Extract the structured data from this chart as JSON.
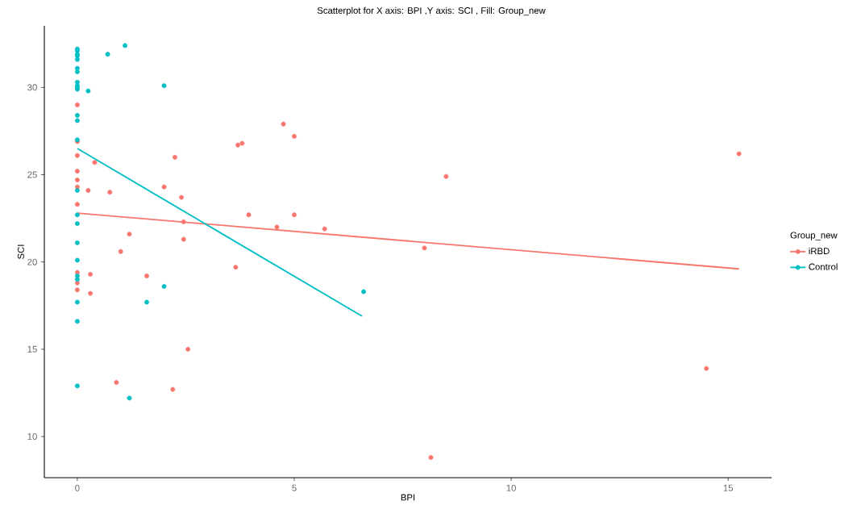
{
  "chart_data": {
    "type": "scatter",
    "title": "Scatterplot for X axis: BPI ,Y axis: SCI , Fill: Group_new",
    "xlabel": "BPI",
    "ylabel": "SCI",
    "legend_title": "Group_new",
    "legend": "right",
    "marker": "circle",
    "xlim": [
      -0.76,
      16.0
    ],
    "ylim": [
      7.64,
      33.53
    ],
    "xticks": [
      0,
      5,
      10,
      15
    ],
    "yticks": [
      10,
      15,
      20,
      25,
      30
    ],
    "series": [
      {
        "name": "iRBD",
        "color": "#f8766d",
        "x": [
          0,
          0,
          0,
          0.4,
          0,
          0,
          0,
          0.25,
          0.75,
          0,
          2.25,
          2.0,
          2.4,
          1.2,
          2.45,
          2.45,
          1.0,
          0,
          0.3,
          0,
          0,
          0.3,
          1.6,
          2.55,
          0.9,
          2.2,
          4.75,
          5.0,
          3.7,
          3.8,
          3.95,
          5.0,
          4.6,
          5.7,
          3.65,
          8.5,
          8.0,
          8.15,
          15.25,
          14.5
        ],
        "values": [
          29.0,
          26.9,
          26.1,
          25.7,
          25.2,
          24.7,
          24.3,
          24.1,
          24.0,
          23.3,
          26.0,
          24.3,
          23.7,
          21.6,
          22.3,
          21.3,
          20.6,
          19.4,
          19.3,
          18.8,
          18.4,
          18.2,
          19.2,
          15.0,
          13.1,
          12.7,
          27.9,
          27.2,
          26.7,
          26.8,
          22.7,
          22.7,
          22.0,
          21.9,
          19.7,
          24.9,
          20.8,
          8.8,
          26.2,
          13.9
        ]
      },
      {
        "name": "Control",
        "color": "#00bfc4",
        "x": [
          0,
          0,
          0,
          0,
          0,
          0,
          0,
          0,
          0,
          0,
          0,
          0,
          0,
          0,
          0,
          0,
          0,
          0,
          0,
          0,
          0,
          0,
          0,
          0,
          0.25,
          0.7,
          1.1,
          2.0,
          2.0,
          1.6,
          1.2,
          6.6
        ],
        "values": [
          32.2,
          32.1,
          31.9,
          31.8,
          31.6,
          31.1,
          30.9,
          30.3,
          30.1,
          30.0,
          29.9,
          28.4,
          28.1,
          27.0,
          24.1,
          22.7,
          22.2,
          21.1,
          20.1,
          19.2,
          19.0,
          17.7,
          16.6,
          12.9,
          29.8,
          31.9,
          32.4,
          30.1,
          18.6,
          17.7,
          12.2,
          18.3
        ]
      },
      {
        "type": "line",
        "marker": "none",
        "color": "#f8766d",
        "x": [
          0,
          15.25
        ],
        "values": [
          22.8,
          19.6
        ]
      },
      {
        "type": "line",
        "marker": "none",
        "color": "#00bfc4",
        "x": [
          0,
          6.56
        ],
        "values": [
          26.5,
          16.9
        ]
      }
    ]
  }
}
